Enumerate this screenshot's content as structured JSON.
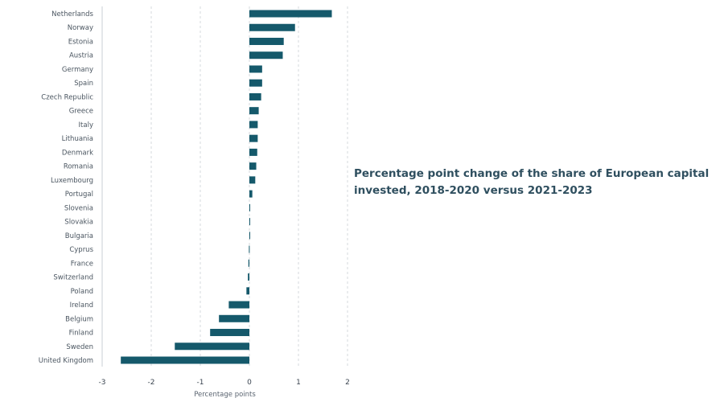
{
  "chart_data": {
    "type": "bar",
    "orientation": "horizontal",
    "title": "Percentage point change of the share of European capital invested, 2018-2020 versus 2021-2023",
    "xlabel": "Percentage points",
    "ylabel": "",
    "xlim": [
      -3,
      2
    ],
    "xticks": [
      "-3",
      "-2",
      "-1",
      "0",
      "1",
      "2"
    ],
    "grid": true,
    "bar_color": "#15596b",
    "categories": [
      "Netherlands",
      "Norway",
      "Estonia",
      "Austria",
      "Germany",
      "Spain",
      "Czech Republic",
      "Greece",
      "Italy",
      "Lithuania",
      "Denmark",
      "Romania",
      "Luxembourg",
      "Portugal",
      "Slovenia",
      "Slovakia",
      "Bulgaria",
      "Cyprus",
      "France",
      "Switzerland",
      "Poland",
      "Ireland",
      "Belgium",
      "Finland",
      "Sweden",
      "United Kingdom"
    ],
    "values": [
      1.68,
      0.93,
      0.7,
      0.68,
      0.26,
      0.26,
      0.24,
      0.19,
      0.17,
      0.17,
      0.16,
      0.14,
      0.12,
      0.06,
      0.01,
      0.01,
      0.01,
      -0.01,
      -0.02,
      -0.03,
      -0.06,
      -0.42,
      -0.62,
      -0.8,
      -1.52,
      -2.62
    ]
  }
}
